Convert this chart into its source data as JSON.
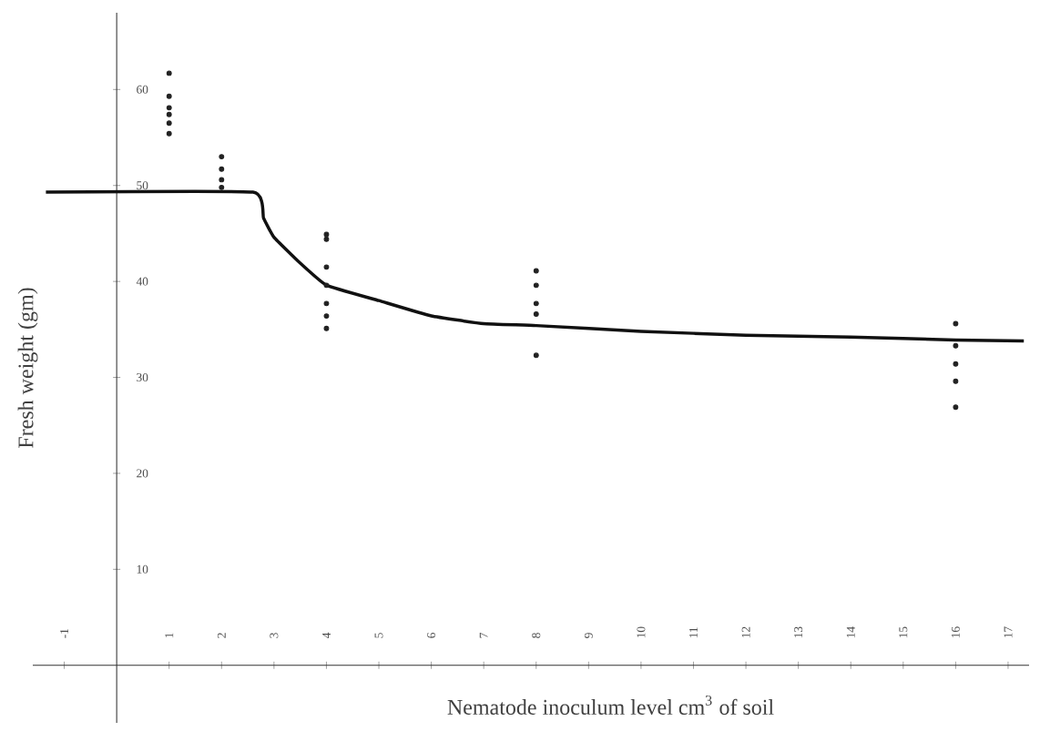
{
  "chart_data": {
    "type": "scatter",
    "xlabel": "Nematode inoculum level cm$^{3}$ of soil",
    "ylabel": "Fresh weight (gm)",
    "xlim": [
      -1.6,
      17.4
    ],
    "ylim": [
      -6,
      68
    ],
    "xticks": [
      -1,
      1,
      2,
      3,
      4,
      5,
      6,
      7,
      8,
      9,
      10,
      11,
      12,
      13,
      14,
      15,
      16,
      17
    ],
    "yticks": [
      10,
      20,
      30,
      40,
      50,
      60
    ],
    "grid": false,
    "series": [
      {
        "marker": "circle",
        "color": "#222222",
        "x": [
          1,
          1,
          1,
          1,
          1,
          1,
          2,
          2,
          2,
          2,
          4,
          4,
          4,
          4,
          4,
          4,
          4,
          8,
          8,
          8,
          8,
          8,
          16,
          16,
          16,
          16,
          16
        ],
        "values": [
          61.7,
          59.3,
          58.1,
          57.4,
          56.5,
          55.4,
          53,
          51.7,
          50.6,
          49.8,
          44.9,
          44.4,
          41.5,
          39.6,
          37.7,
          36.4,
          35.1,
          41.1,
          39.6,
          37.7,
          36.6,
          32.3,
          35.6,
          33.3,
          31.4,
          29.6,
          26.9
        ]
      },
      {
        "type": "line",
        "marker": "none",
        "line_style": "solid",
        "color": "#111111",
        "x": [
          -1.35,
          2.6,
          2.8,
          3,
          3.5,
          4,
          5,
          6,
          7,
          8,
          10,
          12,
          14,
          16,
          17.3
        ],
        "values": [
          49.3,
          49.3,
          46.6,
          44.6,
          41.9,
          39.6,
          38,
          36.4,
          35.6,
          35.4,
          34.8,
          34.4,
          34.2,
          33.9,
          33.8
        ]
      }
    ]
  }
}
